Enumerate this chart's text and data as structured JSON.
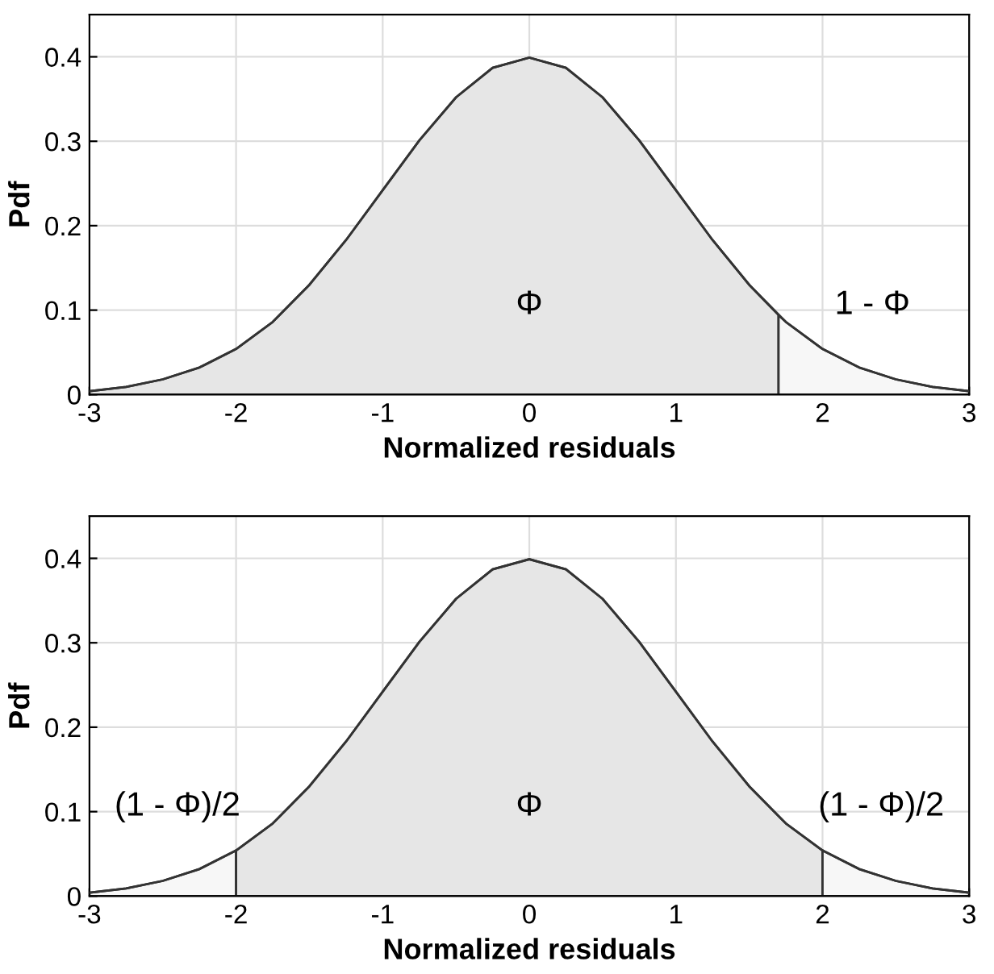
{
  "chart_data": [
    {
      "type": "area",
      "xlabel": "Normalized residuals",
      "ylabel": "Pdf",
      "xlim": [
        -3,
        3
      ],
      "ylim": [
        0,
        0.45
      ],
      "xticks": [
        -3,
        -2,
        -1,
        0,
        1,
        2,
        3
      ],
      "yticks": [
        0,
        0.1,
        0.2,
        0.3,
        0.4
      ],
      "grid": true,
      "series": [
        {
          "color": "#e6e6e6",
          "x": [
            -3,
            -2.75,
            -2.5,
            -2.25,
            -2,
            -1.75,
            -1.5,
            -1.25,
            -1,
            -0.75,
            -0.5,
            -0.25,
            0,
            0.25,
            0.5,
            0.75,
            1,
            1.25,
            1.5,
            1.7
          ],
          "values": [
            0.004,
            0.009,
            0.018,
            0.032,
            0.054,
            0.086,
            0.13,
            0.183,
            0.242,
            0.301,
            0.352,
            0.387,
            0.399,
            0.387,
            0.352,
            0.301,
            0.242,
            0.183,
            0.13,
            0.094
          ]
        },
        {
          "color": "#f7f7f7",
          "x": [
            1.7,
            1.75,
            2,
            2.25,
            2.5,
            2.75,
            3
          ],
          "values": [
            0.094,
            0.086,
            0.054,
            0.032,
            0.018,
            0.009,
            0.004
          ]
        },
        {
          "type": "line",
          "color": "#333333",
          "x": [
            -3,
            -2.75,
            -2.5,
            -2.25,
            -2,
            -1.75,
            -1.5,
            -1.25,
            -1,
            -0.75,
            -0.5,
            -0.25,
            0,
            0.25,
            0.5,
            0.75,
            1,
            1.25,
            1.5,
            1.75,
            2,
            2.25,
            2.5,
            2.75,
            3
          ],
          "values": [
            0.004,
            0.009,
            0.018,
            0.032,
            0.054,
            0.086,
            0.13,
            0.183,
            0.242,
            0.301,
            0.352,
            0.387,
            0.399,
            0.387,
            0.352,
            0.301,
            0.242,
            0.183,
            0.13,
            0.086,
            0.054,
            0.032,
            0.018,
            0.009,
            0.004
          ]
        }
      ],
      "annotations": [
        "Φ",
        "1 - Φ"
      ]
    },
    {
      "type": "area",
      "xlabel": "Normalized residuals",
      "ylabel": "Pdf",
      "xlim": [
        -3,
        3
      ],
      "ylim": [
        0,
        0.45
      ],
      "xticks": [
        -3,
        -2,
        -1,
        0,
        1,
        2,
        3
      ],
      "yticks": [
        0,
        0.1,
        0.2,
        0.3,
        0.4
      ],
      "grid": true,
      "series": [
        {
          "color": "#f7f7f7",
          "x": [
            -3,
            -2.75,
            -2.5,
            -2.25,
            -2
          ],
          "values": [
            0.004,
            0.009,
            0.018,
            0.032,
            0.054
          ]
        },
        {
          "color": "#e6e6e6",
          "x": [
            -2,
            -1.75,
            -1.5,
            -1.25,
            -1,
            -0.75,
            -0.5,
            -0.25,
            0,
            0.25,
            0.5,
            0.75,
            1,
            1.25,
            1.5,
            1.75,
            2
          ],
          "values": [
            0.054,
            0.086,
            0.13,
            0.183,
            0.242,
            0.301,
            0.352,
            0.387,
            0.399,
            0.387,
            0.352,
            0.301,
            0.242,
            0.183,
            0.13,
            0.086,
            0.054
          ]
        },
        {
          "color": "#f7f7f7",
          "x": [
            2,
            2.25,
            2.5,
            2.75,
            3
          ],
          "values": [
            0.054,
            0.032,
            0.018,
            0.009,
            0.004
          ]
        },
        {
          "type": "line",
          "color": "#333333",
          "x": [
            -3,
            -2.75,
            -2.5,
            -2.25,
            -2,
            -1.75,
            -1.5,
            -1.25,
            -1,
            -0.75,
            -0.5,
            -0.25,
            0,
            0.25,
            0.5,
            0.75,
            1,
            1.25,
            1.5,
            1.75,
            2,
            2.25,
            2.5,
            2.75,
            3
          ],
          "values": [
            0.004,
            0.009,
            0.018,
            0.032,
            0.054,
            0.086,
            0.13,
            0.183,
            0.242,
            0.301,
            0.352,
            0.387,
            0.399,
            0.387,
            0.352,
            0.301,
            0.242,
            0.183,
            0.13,
            0.086,
            0.054,
            0.032,
            0.018,
            0.009,
            0.004
          ]
        }
      ],
      "annotations": [
        "(1 - Φ)/2",
        "Φ",
        "(1 - Φ)/2"
      ]
    }
  ]
}
